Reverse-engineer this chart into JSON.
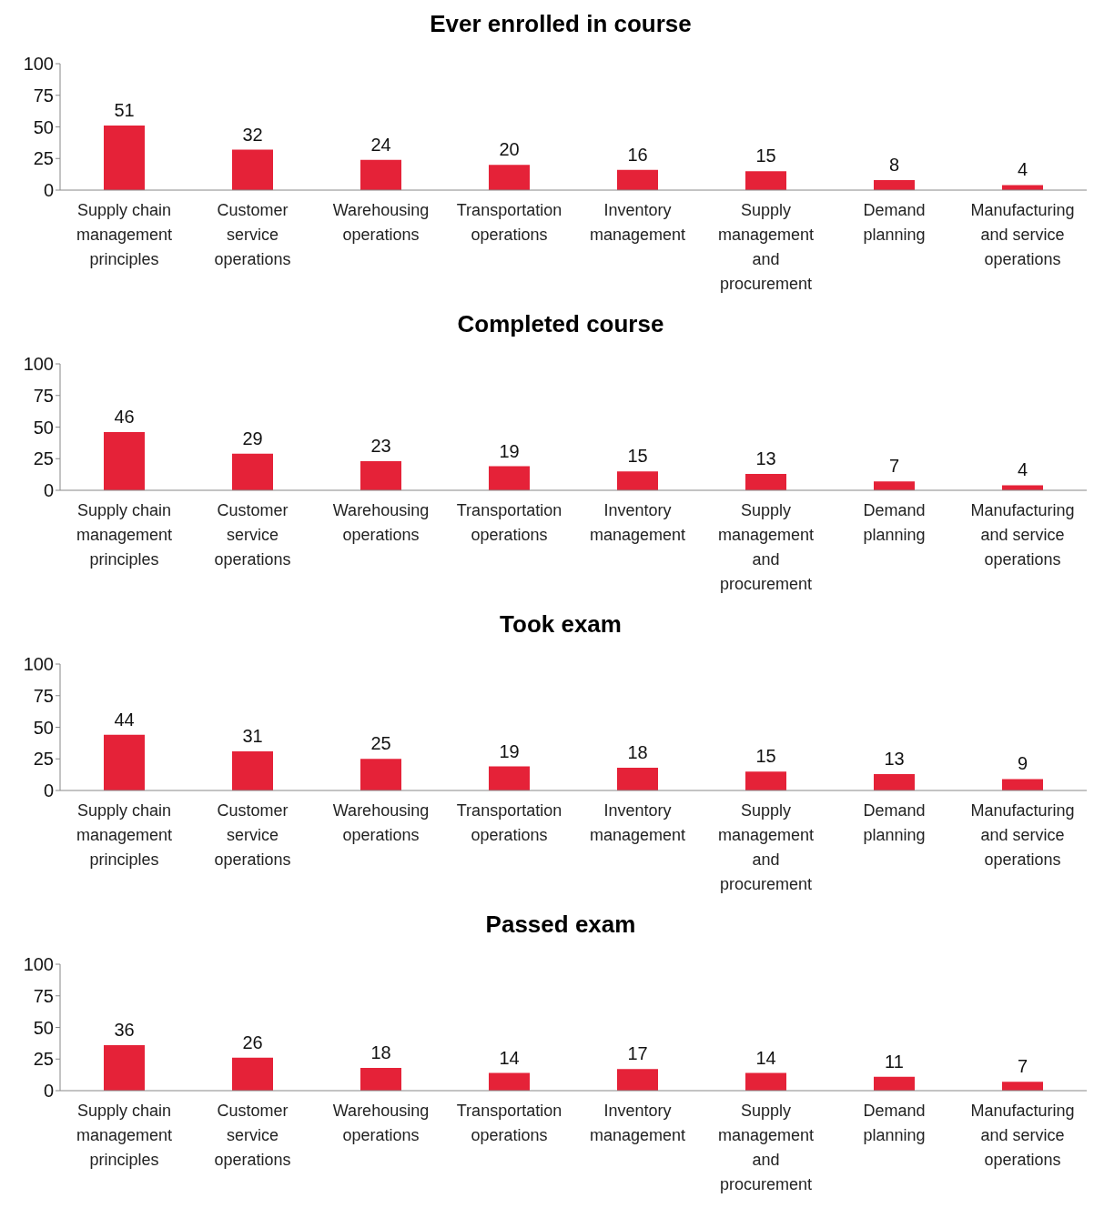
{
  "chart_data": [
    {
      "type": "bar",
      "title": "Ever enrolled in course",
      "categories": [
        "Supply chain management principles",
        "Customer service operations",
        "Warehousing operations",
        "Transportation operations",
        "Inventory management",
        "Supply management and procurement",
        "Demand planning",
        "Manufacturing and service operations"
      ],
      "values": [
        51,
        32,
        24,
        20,
        16,
        15,
        8,
        4
      ],
      "color": "#e52238",
      "ylim": [
        0,
        100
      ],
      "yticks": [
        0,
        25,
        50,
        75,
        100
      ],
      "data_labels": true
    },
    {
      "type": "bar",
      "title": "Completed course",
      "categories": [
        "Supply chain management principles",
        "Customer service operations",
        "Warehousing operations",
        "Transportation operations",
        "Inventory management",
        "Supply management and procurement",
        "Demand planning",
        "Manufacturing and service operations"
      ],
      "values": [
        46,
        29,
        23,
        19,
        15,
        13,
        7,
        4
      ],
      "color": "#e52238",
      "ylim": [
        0,
        100
      ],
      "yticks": [
        0,
        25,
        50,
        75,
        100
      ],
      "data_labels": true
    },
    {
      "type": "bar",
      "title": "Took exam",
      "categories": [
        "Supply chain management principles",
        "Customer service operations",
        "Warehousing operations",
        "Transportation operations",
        "Inventory management",
        "Supply management and procurement",
        "Demand planning",
        "Manufacturing and service operations"
      ],
      "values": [
        44,
        31,
        25,
        19,
        18,
        15,
        13,
        9
      ],
      "color": "#e52238",
      "ylim": [
        0,
        100
      ],
      "yticks": [
        0,
        25,
        50,
        75,
        100
      ],
      "data_labels": true
    },
    {
      "type": "bar",
      "title": "Passed exam",
      "categories": [
        "Supply chain management principles",
        "Customer service operations",
        "Warehousing operations",
        "Transportation operations",
        "Inventory management",
        "Supply management and procurement",
        "Demand planning",
        "Manufacturing and service operations"
      ],
      "values": [
        36,
        26,
        18,
        14,
        17,
        14,
        11,
        7
      ],
      "color": "#e52238",
      "ylim": [
        0,
        100
      ],
      "yticks": [
        0,
        25,
        50,
        75,
        100
      ],
      "data_labels": true
    }
  ]
}
